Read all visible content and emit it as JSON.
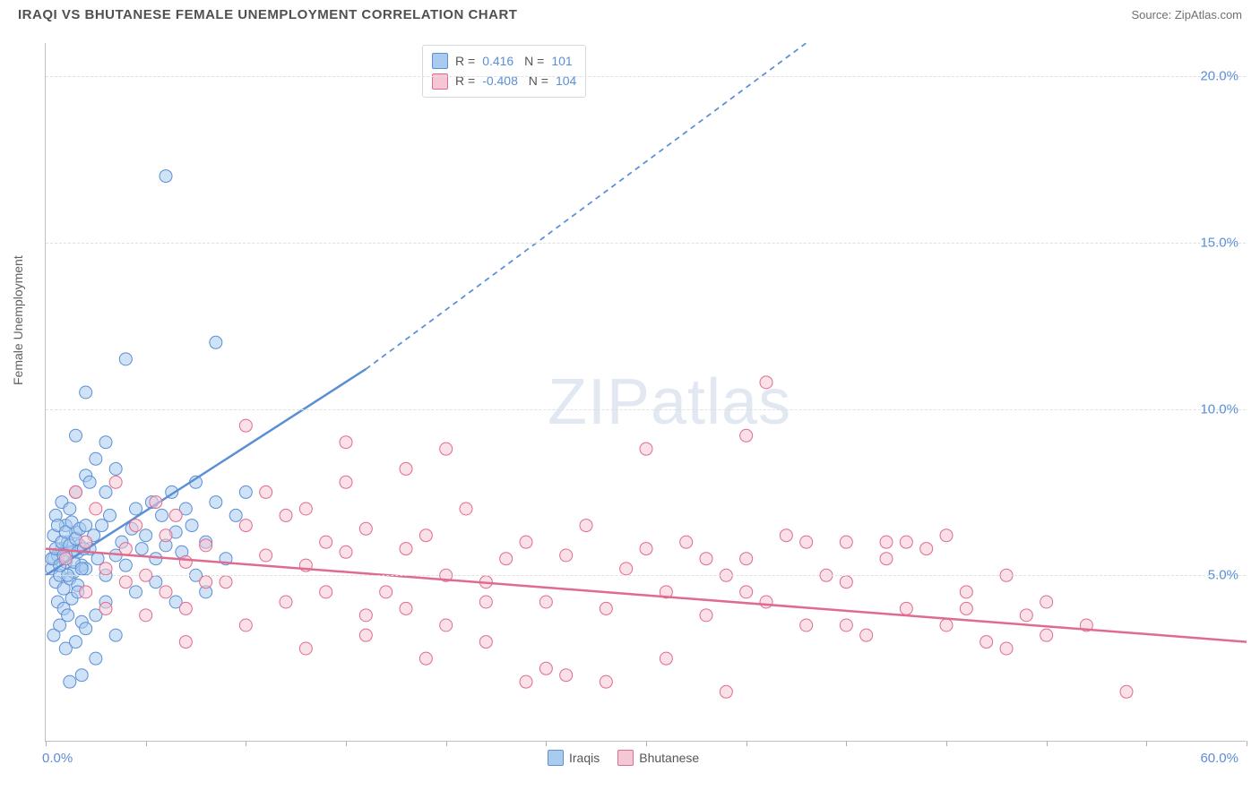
{
  "title": "IRAQI VS BHUTANESE FEMALE UNEMPLOYMENT CORRELATION CHART",
  "source_label": "Source: ZipAtlas.com",
  "ylabel": "Female Unemployment",
  "watermark": {
    "bold": "ZIP",
    "rest": "atlas"
  },
  "chart": {
    "type": "scatter",
    "xlim": [
      0,
      60
    ],
    "ylim": [
      0,
      21
    ],
    "y_ticks": [
      5.0,
      10.0,
      15.0,
      20.0
    ],
    "y_tick_labels": [
      "5.0%",
      "10.0%",
      "15.0%",
      "20.0%"
    ],
    "x_ticks": [
      0,
      5,
      10,
      15,
      20,
      25,
      30,
      35,
      40,
      45,
      50,
      55,
      60
    ],
    "x_axis_labels": {
      "min": "0.0%",
      "max": "60.0%"
    },
    "background_color": "#ffffff",
    "grid_color": "#e0e0e0",
    "marker_radius": 7,
    "marker_opacity": 0.55,
    "series": [
      {
        "name": "Iraqis",
        "color_fill": "#a9cbef",
        "color_stroke": "#5a8fd6",
        "R": "0.416",
        "N": "101",
        "trend": {
          "x1": 0,
          "y1": 5.0,
          "x2_solid": 16,
          "y2_solid": 11.2,
          "x2_dash": 38,
          "y2_dash": 21.0,
          "width": 2.5
        },
        "points": [
          [
            0.3,
            5.2
          ],
          [
            0.4,
            5.5
          ],
          [
            0.5,
            4.8
          ],
          [
            0.6,
            5.6
          ],
          [
            0.7,
            5.0
          ],
          [
            0.8,
            5.8
          ],
          [
            0.9,
            4.6
          ],
          [
            1.0,
            5.4
          ],
          [
            1.1,
            6.0
          ],
          [
            1.2,
            4.9
          ],
          [
            1.3,
            5.7
          ],
          [
            1.4,
            5.1
          ],
          [
            1.5,
            6.3
          ],
          [
            1.6,
            4.7
          ],
          [
            1.7,
            5.9
          ],
          [
            1.8,
            5.3
          ],
          [
            0.5,
            6.8
          ],
          [
            0.8,
            7.2
          ],
          [
            1.0,
            6.5
          ],
          [
            1.2,
            7.0
          ],
          [
            1.5,
            7.5
          ],
          [
            0.6,
            4.2
          ],
          [
            0.9,
            4.0
          ],
          [
            1.1,
            3.8
          ],
          [
            1.3,
            4.3
          ],
          [
            1.6,
            4.5
          ],
          [
            1.8,
            3.6
          ],
          [
            2.0,
            5.2
          ],
          [
            2.2,
            5.8
          ],
          [
            2.4,
            6.2
          ],
          [
            2.6,
            5.5
          ],
          [
            2.8,
            6.5
          ],
          [
            3.0,
            5.0
          ],
          [
            3.2,
            6.8
          ],
          [
            3.5,
            5.6
          ],
          [
            3.8,
            6.0
          ],
          [
            4.0,
            5.3
          ],
          [
            4.3,
            6.4
          ],
          [
            4.5,
            7.0
          ],
          [
            4.8,
            5.8
          ],
          [
            5.0,
            6.2
          ],
          [
            5.3,
            7.2
          ],
          [
            5.5,
            5.5
          ],
          [
            5.8,
            6.8
          ],
          [
            6.0,
            5.9
          ],
          [
            6.3,
            7.5
          ],
          [
            6.5,
            6.3
          ],
          [
            6.8,
            5.7
          ],
          [
            7.0,
            7.0
          ],
          [
            7.3,
            6.5
          ],
          [
            7.5,
            7.8
          ],
          [
            8.0,
            6.0
          ],
          [
            8.5,
            7.2
          ],
          [
            9.0,
            5.5
          ],
          [
            9.5,
            6.8
          ],
          [
            10.0,
            7.5
          ],
          [
            0.4,
            3.2
          ],
          [
            0.7,
            3.5
          ],
          [
            1.0,
            2.8
          ],
          [
            1.5,
            3.0
          ],
          [
            2.0,
            3.4
          ],
          [
            2.5,
            3.8
          ],
          [
            3.0,
            4.2
          ],
          [
            2.0,
            8.0
          ],
          [
            2.5,
            8.5
          ],
          [
            3.0,
            9.0
          ],
          [
            3.5,
            8.2
          ],
          [
            1.5,
            9.2
          ],
          [
            2.0,
            10.5
          ],
          [
            4.0,
            11.5
          ],
          [
            8.5,
            12.0
          ],
          [
            3.0,
            7.5
          ],
          [
            1.2,
            1.8
          ],
          [
            1.8,
            2.0
          ],
          [
            4.5,
            4.5
          ],
          [
            5.5,
            4.8
          ],
          [
            6.5,
            4.2
          ],
          [
            7.5,
            5.0
          ],
          [
            8.0,
            4.5
          ],
          [
            0.3,
            5.5
          ],
          [
            0.4,
            6.2
          ],
          [
            0.5,
            5.8
          ],
          [
            0.6,
            6.5
          ],
          [
            0.7,
            5.3
          ],
          [
            0.8,
            6.0
          ],
          [
            0.9,
            5.6
          ],
          [
            1.0,
            6.3
          ],
          [
            1.1,
            5.0
          ],
          [
            1.2,
            5.9
          ],
          [
            1.3,
            6.6
          ],
          [
            1.4,
            5.4
          ],
          [
            1.5,
            6.1
          ],
          [
            1.6,
            5.7
          ],
          [
            1.7,
            6.4
          ],
          [
            1.8,
            5.2
          ],
          [
            1.9,
            5.8
          ],
          [
            2.0,
            6.5
          ],
          [
            2.2,
            7.8
          ],
          [
            6.0,
            17.0
          ],
          [
            2.5,
            2.5
          ],
          [
            3.5,
            3.2
          ]
        ]
      },
      {
        "name": "Bhutanese",
        "color_fill": "#f5c6d3",
        "color_stroke": "#e06b8f",
        "R": "-0.408",
        "N": "104",
        "trend": {
          "x1": 0,
          "y1": 5.8,
          "x2_solid": 60,
          "y2_solid": 3.0,
          "width": 2.5
        },
        "points": [
          [
            1.0,
            5.5
          ],
          [
            2.0,
            6.0
          ],
          [
            3.0,
            5.2
          ],
          [
            4.0,
            5.8
          ],
          [
            5.0,
            5.0
          ],
          [
            6.0,
            6.2
          ],
          [
            7.0,
            5.4
          ],
          [
            8.0,
            5.9
          ],
          [
            9.0,
            4.8
          ],
          [
            10.0,
            6.5
          ],
          [
            11.0,
            5.6
          ],
          [
            12.0,
            6.8
          ],
          [
            13.0,
            5.3
          ],
          [
            14.0,
            6.0
          ],
          [
            15.0,
            5.7
          ],
          [
            16.0,
            6.4
          ],
          [
            17.0,
            4.5
          ],
          [
            18.0,
            5.8
          ],
          [
            19.0,
            6.2
          ],
          [
            20.0,
            5.0
          ],
          [
            21.0,
            7.0
          ],
          [
            22.0,
            4.8
          ],
          [
            23.0,
            5.5
          ],
          [
            24.0,
            6.0
          ],
          [
            25.0,
            4.2
          ],
          [
            26.0,
            5.6
          ],
          [
            27.0,
            6.5
          ],
          [
            28.0,
            4.0
          ],
          [
            29.0,
            5.2
          ],
          [
            30.0,
            5.8
          ],
          [
            31.0,
            4.5
          ],
          [
            32.0,
            6.0
          ],
          [
            33.0,
            3.8
          ],
          [
            34.0,
            5.0
          ],
          [
            35.0,
            5.5
          ],
          [
            36.0,
            4.2
          ],
          [
            37.0,
            6.2
          ],
          [
            38.0,
            3.5
          ],
          [
            39.0,
            5.0
          ],
          [
            40.0,
            4.8
          ],
          [
            41.0,
            3.2
          ],
          [
            42.0,
            5.5
          ],
          [
            43.0,
            4.0
          ],
          [
            44.0,
            5.8
          ],
          [
            45.0,
            3.5
          ],
          [
            46.0,
            4.5
          ],
          [
            47.0,
            3.0
          ],
          [
            48.0,
            5.0
          ],
          [
            49.0,
            3.8
          ],
          [
            50.0,
            4.2
          ],
          [
            52.0,
            3.5
          ],
          [
            54.0,
            1.5
          ],
          [
            7.0,
            3.0
          ],
          [
            10.0,
            3.5
          ],
          [
            13.0,
            2.8
          ],
          [
            16.0,
            3.2
          ],
          [
            19.0,
            2.5
          ],
          [
            22.0,
            3.0
          ],
          [
            25.0,
            2.2
          ],
          [
            28.0,
            1.8
          ],
          [
            31.0,
            2.5
          ],
          [
            34.0,
            1.5
          ],
          [
            10.0,
            9.5
          ],
          [
            15.0,
            9.0
          ],
          [
            18.0,
            8.2
          ],
          [
            20.0,
            8.8
          ],
          [
            30.0,
            8.8
          ],
          [
            36.0,
            10.8
          ],
          [
            35.0,
            9.2
          ],
          [
            40.0,
            6.0
          ],
          [
            42.0,
            6.0
          ],
          [
            45.0,
            6.2
          ],
          [
            2.0,
            4.5
          ],
          [
            3.0,
            4.0
          ],
          [
            4.0,
            4.8
          ],
          [
            5.0,
            3.8
          ],
          [
            6.0,
            4.5
          ],
          [
            7.0,
            4.0
          ],
          [
            8.0,
            4.8
          ],
          [
            1.5,
            7.5
          ],
          [
            2.5,
            7.0
          ],
          [
            3.5,
            7.8
          ],
          [
            4.5,
            6.5
          ],
          [
            5.5,
            7.2
          ],
          [
            6.5,
            6.8
          ],
          [
            12.0,
            4.2
          ],
          [
            14.0,
            4.5
          ],
          [
            16.0,
            3.8
          ],
          [
            18.0,
            4.0
          ],
          [
            20.0,
            3.5
          ],
          [
            22.0,
            4.2
          ],
          [
            24.0,
            1.8
          ],
          [
            26.0,
            2.0
          ],
          [
            33.0,
            5.5
          ],
          [
            35.0,
            4.5
          ],
          [
            38.0,
            6.0
          ],
          [
            40.0,
            3.5
          ],
          [
            43.0,
            6.0
          ],
          [
            46.0,
            4.0
          ],
          [
            48.0,
            2.8
          ],
          [
            50.0,
            3.2
          ],
          [
            11.0,
            7.5
          ],
          [
            13.0,
            7.0
          ],
          [
            15.0,
            7.8
          ]
        ]
      }
    ]
  },
  "legend_bottom": [
    {
      "label": "Iraqis",
      "fill": "#a9cbef",
      "stroke": "#5a8fd6"
    },
    {
      "label": "Bhutanese",
      "fill": "#f5c6d3",
      "stroke": "#e06b8f"
    }
  ]
}
